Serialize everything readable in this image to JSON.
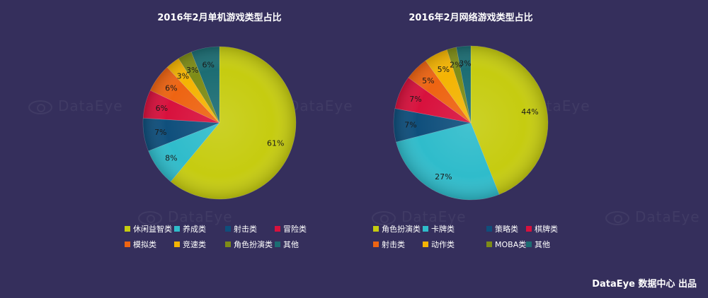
{
  "footer": "DataEye 数据中心 出品",
  "watermark": "DataEye",
  "chart_data": [
    {
      "type": "pie",
      "title": "2016年2月单机游戏类型占比",
      "slices": [
        {
          "name": "休闲益智类",
          "value": 61,
          "label": "61%",
          "color": "#c6cc10"
        },
        {
          "name": "养成类",
          "value": 8,
          "label": "8%",
          "color": "#2fbccb"
        },
        {
          "name": "射击类",
          "value": 7,
          "label": "7%",
          "color": "#0f4f7c"
        },
        {
          "name": "冒险类",
          "value": 6,
          "label": "6%",
          "color": "#d8113d"
        },
        {
          "name": "模拟类",
          "value": 6,
          "label": "6%",
          "color": "#ee6412"
        },
        {
          "name": "竞速类",
          "value": 3,
          "label": "3%",
          "color": "#f4b403"
        },
        {
          "name": "角色扮演类",
          "value": 3,
          "label": "3%",
          "color": "#7e8c17"
        },
        {
          "name": "其他",
          "value": 6,
          "label": "6%",
          "color": "#1c6d73"
        }
      ],
      "legend": "bottom"
    },
    {
      "type": "pie",
      "title": "2016年2月网络游戏类型占比",
      "slices": [
        {
          "name": "角色扮演类",
          "value": 44,
          "label": "44%",
          "color": "#c6cc10"
        },
        {
          "name": "卡牌类",
          "value": 27,
          "label": "27%",
          "color": "#2fbccb"
        },
        {
          "name": "策略类",
          "value": 7,
          "label": "7%",
          "color": "#0f4f7c"
        },
        {
          "name": "棋牌类",
          "value": 7,
          "label": "7%",
          "color": "#d8113d"
        },
        {
          "name": "射击类",
          "value": 5,
          "label": "5%",
          "color": "#ee6412"
        },
        {
          "name": "动作类",
          "value": 5,
          "label": "5%",
          "color": "#f4b403"
        },
        {
          "name": "MOBA类",
          "value": 2,
          "label": "2%",
          "color": "#7e8c17"
        },
        {
          "name": "其他",
          "value": 3,
          "label": "3%",
          "color": "#1c6d73"
        }
      ],
      "legend": "bottom"
    }
  ]
}
